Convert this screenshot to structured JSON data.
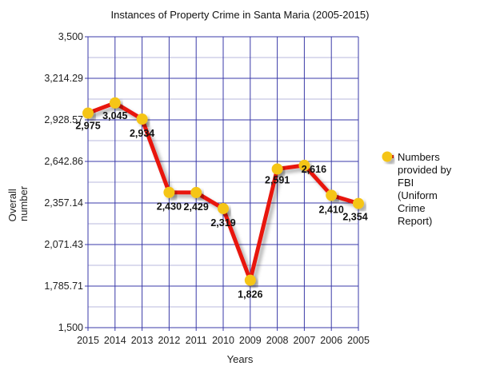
{
  "chart_data": {
    "type": "line",
    "title": "Instances of Property Crime in Santa Maria (2005-2015)",
    "xlabel": "Years",
    "ylabel": "Overall number",
    "categories": [
      "2015",
      "2014",
      "2013",
      "2012",
      "2011",
      "2010",
      "2009",
      "2008",
      "2007",
      "2006",
      "2005"
    ],
    "series": [
      {
        "name": "Numbers provided by FBI (Uniform Crime Report)",
        "values": [
          2975,
          3045,
          2934,
          2430,
          2429,
          2319,
          1826,
          2591,
          2616,
          2410,
          2354
        ],
        "labels": [
          "2,975",
          "3,045",
          "2,934",
          "2,430",
          "2,429",
          "2,319",
          "1,826",
          "2,591",
          "2,616",
          "2,410",
          "2,354"
        ]
      }
    ],
    "ylim": [
      1500,
      3500
    ],
    "yticks": [
      1500,
      1785.71,
      2071.43,
      2357.14,
      2642.86,
      2928.57,
      3214.29,
      3500
    ],
    "ytick_labels": [
      "1,500",
      "1,785.71",
      "2,071.43",
      "2,357.14",
      "2,642.86",
      "2,928.57",
      "3,214.29",
      "3,500"
    ],
    "legend": {
      "placement": "right",
      "lines": [
        "Numbers",
        "provided by",
        "FBI",
        "(Uniform",
        "Crime",
        "Report)"
      ]
    },
    "grid": true,
    "colors": {
      "line": "#e8120c",
      "marker": "#f5c518",
      "grid": "#3a3aa8",
      "minor_grid": "#b8b8dc"
    }
  }
}
